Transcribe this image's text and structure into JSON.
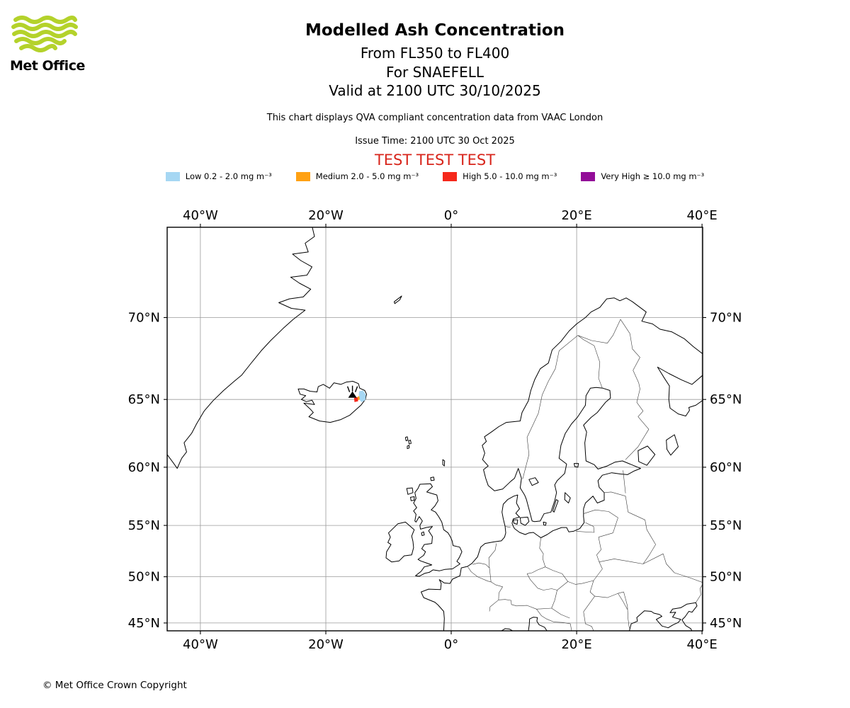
{
  "logo": {
    "text": "Met Office",
    "wave_color": "#B4D22B"
  },
  "header": {
    "title": "Modelled Ash Concentration",
    "subtitle_lines": [
      "From FL350 to FL400",
      "For SNAEFELL",
      "Valid at 2100 UTC 30/10/2025"
    ],
    "description": "This chart displays QVA compliant concentration data from VAAC London",
    "issue_time": "Issue Time: 2100 UTC 30 Oct 2025",
    "test_banner": "TEST TEST TEST",
    "test_banner_color": "#D8261C"
  },
  "legend": {
    "items": [
      {
        "level": "Low",
        "label": "Low 0.2 - 2.0 mg m⁻³",
        "color": "#A6D7F3"
      },
      {
        "level": "Medium",
        "label": "Medium 2.0 - 5.0 mg m⁻³",
        "color": "#FFA113"
      },
      {
        "level": "High",
        "label": "High 5.0 - 10.0 mg m⁻³",
        "color": "#F5281B"
      },
      {
        "level": "Very High",
        "label": "Very High  ≥  10.0 mg m⁻³",
        "color": "#930D98"
      }
    ]
  },
  "chart_data": {
    "type": "map",
    "projection": "mercator",
    "region": "North Atlantic / Europe",
    "lon_range": [
      -45.3,
      40.1
    ],
    "lat_range": [
      44.1,
      74.4
    ],
    "grid": true,
    "lon_ticks": [
      {
        "lon": -40,
        "label": "40°W"
      },
      {
        "lon": -20,
        "label": "20°W"
      },
      {
        "lon": 0,
        "label": "0°"
      },
      {
        "lon": 20,
        "label": "20°E"
      },
      {
        "lon": 40,
        "label": "40°E"
      }
    ],
    "lat_ticks": [
      {
        "lat": 70,
        "label": "70°N"
      },
      {
        "lat": 65,
        "label": "65°N"
      },
      {
        "lat": 60,
        "label": "60°N"
      },
      {
        "lat": 55,
        "label": "55°N"
      },
      {
        "lat": 50,
        "label": "50°N"
      },
      {
        "lat": 45,
        "label": "45°N"
      }
    ],
    "volcano": {
      "name": "SNAEFELL",
      "lon": -15.75,
      "lat": 65.35
    },
    "ash_patches": [
      {
        "level": "Low",
        "color": "#A6D7F3",
        "polygon": [
          -14.7,
          65.55,
          -14.05,
          65.6,
          -13.6,
          65.3,
          -13.7,
          64.95,
          -14.3,
          64.82,
          -14.75,
          65.05
        ]
      },
      {
        "level": "Medium",
        "color": "#FFA113",
        "polygon": [
          -14.95,
          65.18,
          -14.65,
          65.22,
          -14.6,
          65.0,
          -14.9,
          64.95
        ]
      },
      {
        "level": "High",
        "color": "#F5281B",
        "polygon": [
          -15.5,
          65.1,
          -14.95,
          65.15,
          -14.85,
          64.88,
          -15.42,
          64.82
        ]
      }
    ]
  },
  "footer": {
    "copyright": "© Met Office Crown Copyright"
  }
}
